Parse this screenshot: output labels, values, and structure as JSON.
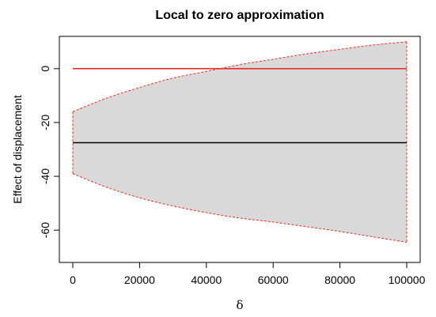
{
  "chart_data": {
    "type": "area",
    "title": "Local to zero approximation",
    "xlabel": "δ",
    "ylabel": "Effect of displacement",
    "xlim": [
      0,
      100000
    ],
    "ylim": [
      -72,
      12
    ],
    "x_ticks": [
      0,
      20000,
      40000,
      60000,
      80000,
      100000
    ],
    "y_ticks": [
      0,
      -20,
      -40,
      -60
    ],
    "grid": false,
    "legend": "none",
    "band": {
      "x": [
        0,
        10000,
        20000,
        30000,
        40000,
        50000,
        60000,
        70000,
        80000,
        90000,
        100000
      ],
      "upper": [
        -16,
        -11,
        -7,
        -3.5,
        -1,
        1.5,
        3.5,
        5.5,
        7.2,
        8.8,
        10
      ],
      "lower": [
        -39,
        -44,
        -48,
        -51,
        -53.5,
        -55.5,
        -57,
        -58.7,
        -60.5,
        -62.5,
        -64.5
      ],
      "fill": "#d9d9d9",
      "edge_color": "#e8302a"
    },
    "series": [
      {
        "values": [
          0,
          0
        ],
        "x": [
          0,
          100000
        ],
        "color": "#e8302a"
      },
      {
        "values": [
          -27.5,
          -27.5
        ],
        "x": [
          0,
          100000
        ],
        "color": "#000000"
      }
    ]
  }
}
